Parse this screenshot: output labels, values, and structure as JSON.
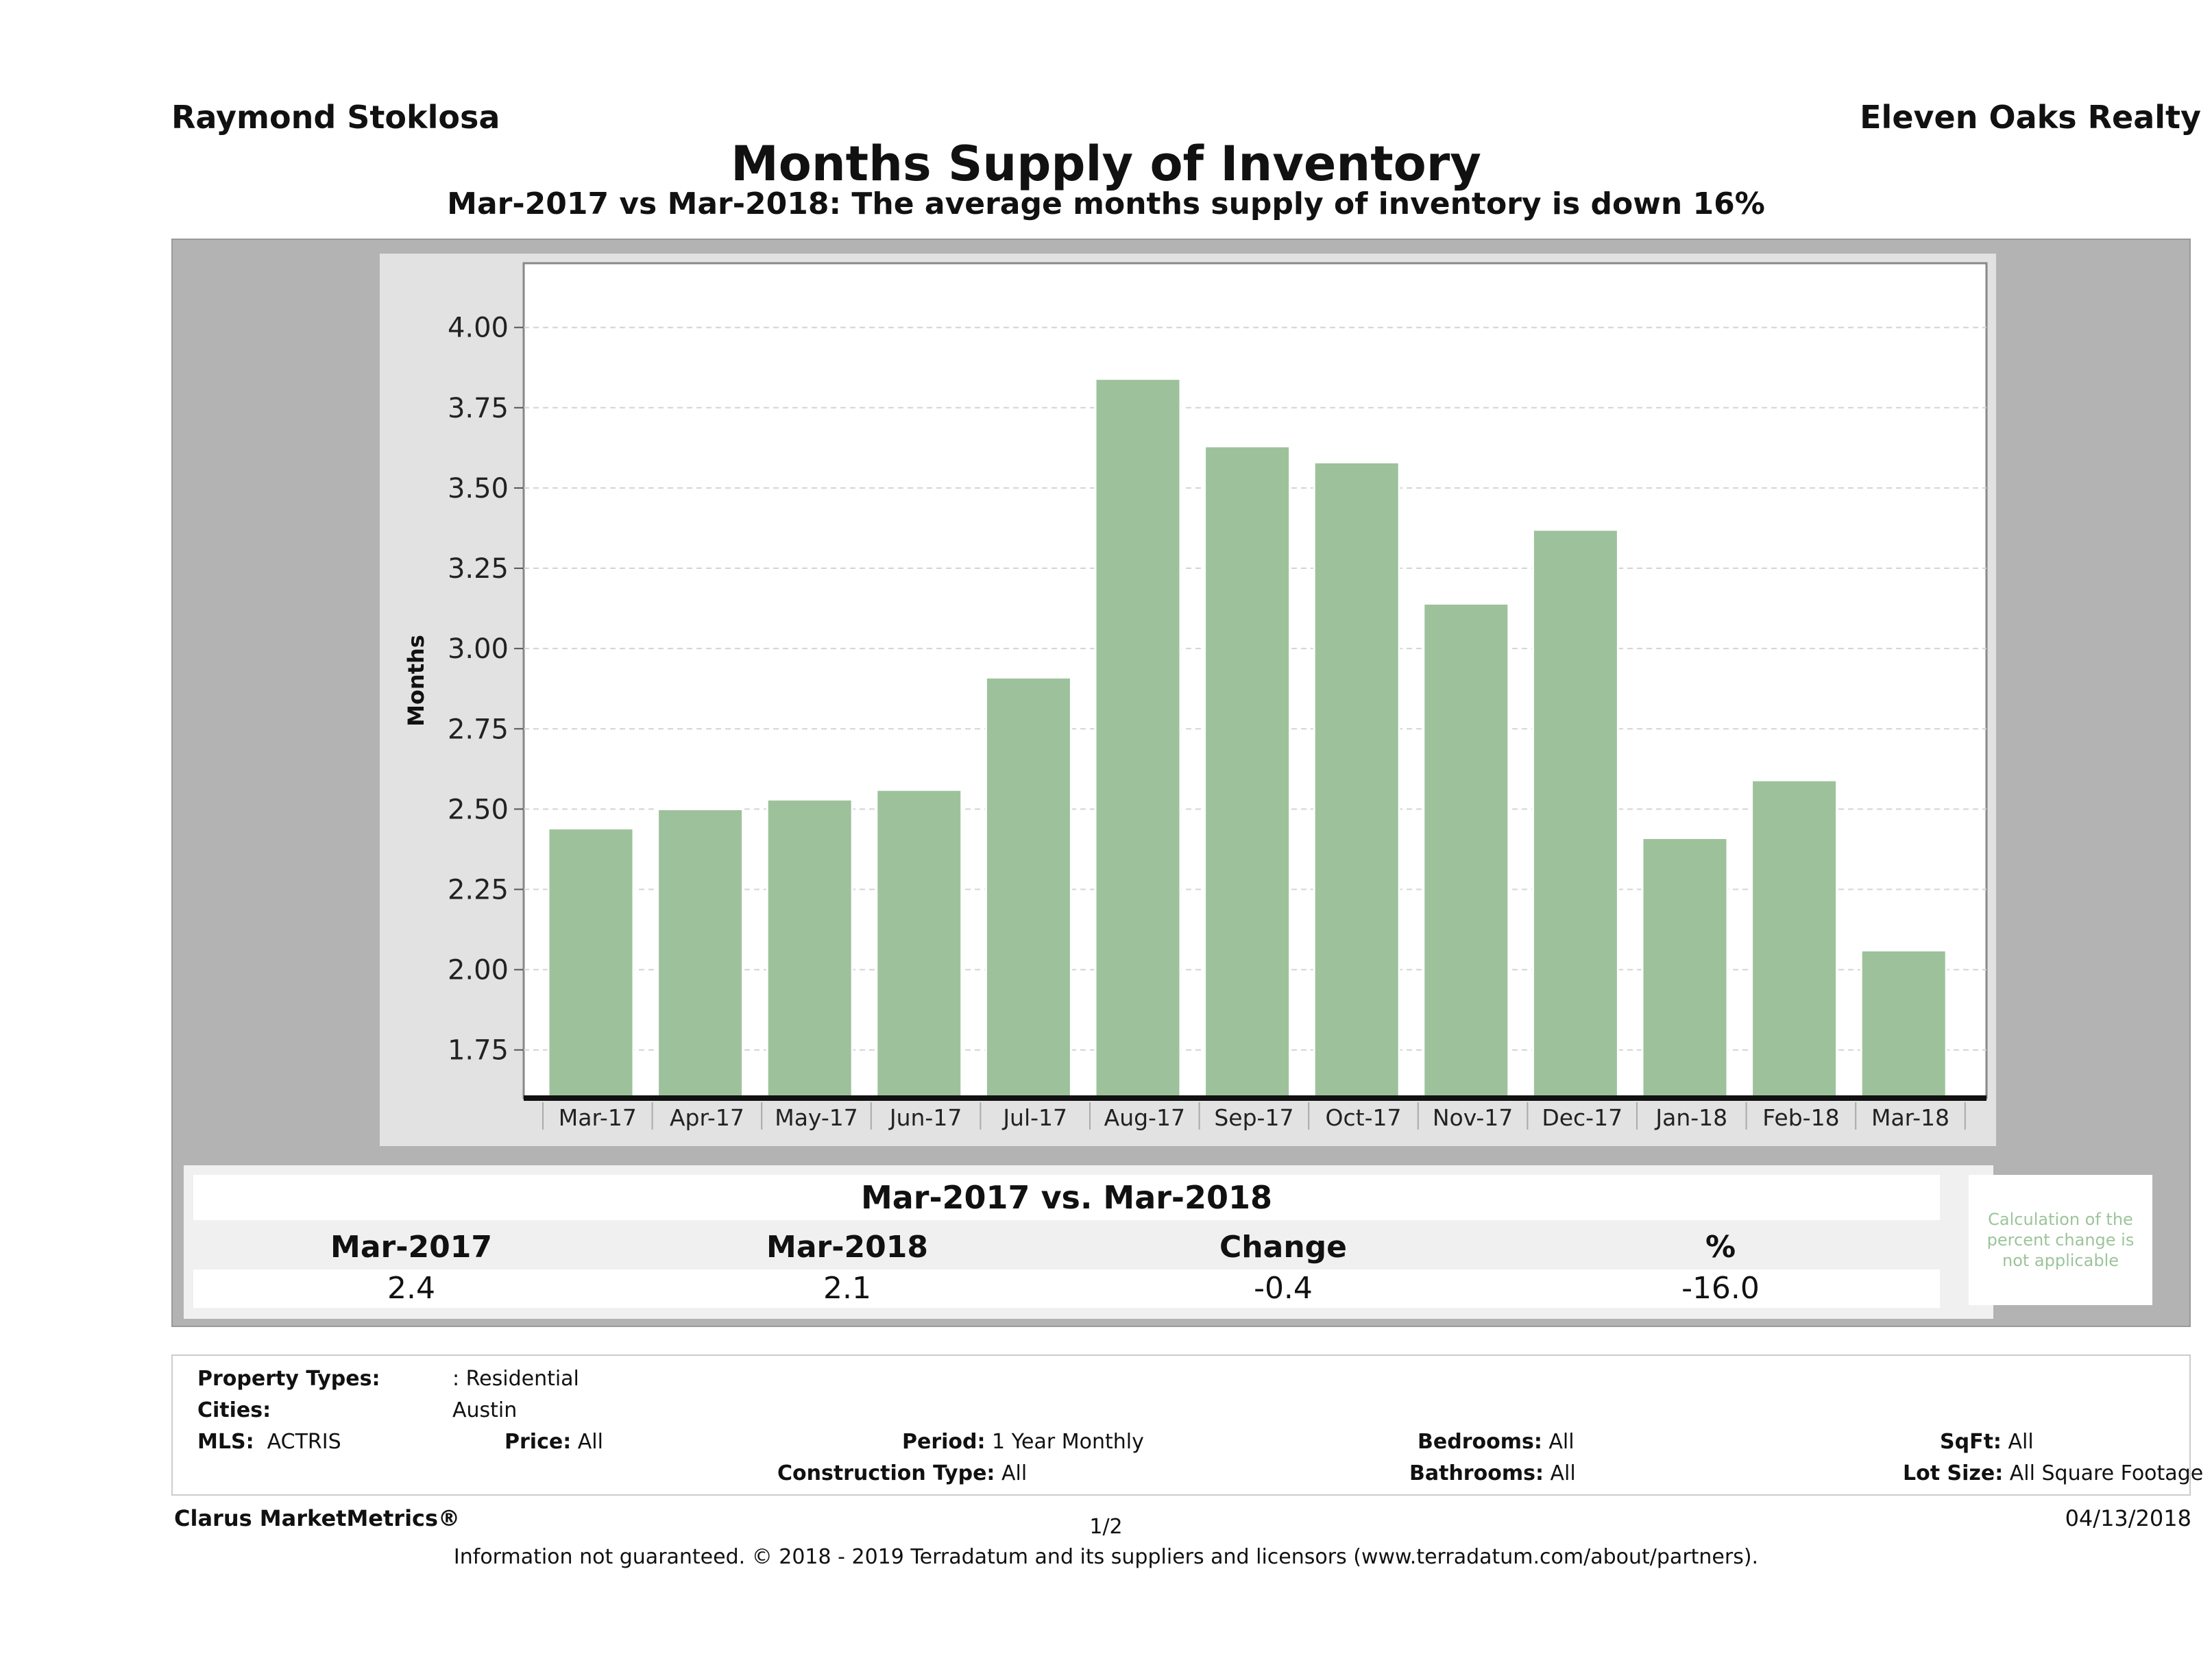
{
  "header": {
    "agent": "Raymond Stoklosa",
    "brokerage": "Eleven Oaks Realty",
    "title": "Months Supply of Inventory",
    "subtitle": "Mar-2017 vs Mar-2018: The average months supply of inventory is down 16%"
  },
  "chart_data": {
    "type": "bar",
    "categories": [
      "Mar-17",
      "Apr-17",
      "May-17",
      "Jun-17",
      "Jul-17",
      "Aug-17",
      "Sep-17",
      "Oct-17",
      "Nov-17",
      "Dec-17",
      "Jan-18",
      "Feb-18",
      "Mar-18"
    ],
    "values": [
      2.44,
      2.5,
      2.53,
      2.56,
      2.91,
      3.84,
      3.63,
      3.58,
      3.14,
      3.37,
      2.41,
      2.59,
      2.06
    ],
    "title": "",
    "xlabel": "",
    "ylabel": "Months",
    "ylim": [
      1.6,
      4.2
    ],
    "yticks": [
      "1.75",
      "2.00",
      "2.25",
      "2.50",
      "2.75",
      "3.00",
      "3.25",
      "3.50",
      "3.75",
      "4.00"
    ],
    "grid": true,
    "bar_color": "#9dc29b"
  },
  "stats": {
    "title": "Mar-2017 vs. Mar-2018",
    "headers": [
      "Mar-2017",
      "Mar-2018",
      "Change",
      "%"
    ],
    "values": [
      "2.4",
      "2.1",
      "-0.4",
      "-16.0"
    ],
    "note": "Calculation of the percent change is not applicable"
  },
  "filters": {
    "property_types_label": "Property Types:",
    "property_types_value": ": Residential",
    "cities_label": "Cities:",
    "cities_value": "Austin",
    "mls_label": "MLS:",
    "mls_value": "ACTRIS",
    "price_label": "Price:",
    "price_value": "All",
    "period_label": "Period:",
    "period_value": "1 Year Monthly",
    "construction_label": "Construction Type:",
    "construction_value": "All",
    "bedrooms_label": "Bedrooms:",
    "bedrooms_value": "All",
    "bathrooms_label": "Bathrooms:",
    "bathrooms_value": "All",
    "sqft_label": "SqFt:",
    "sqft_value": "All",
    "lotsize_label": "Lot Size:",
    "lotsize_value": "All Square Footage"
  },
  "footer": {
    "brand": "Clarus MarketMetrics®",
    "page": "1/2",
    "date": "04/13/2018",
    "disclaimer": "Information not guaranteed. © 2018 - 2019 Terradatum and its suppliers and licensors (www.terradatum.com/about/partners)."
  }
}
